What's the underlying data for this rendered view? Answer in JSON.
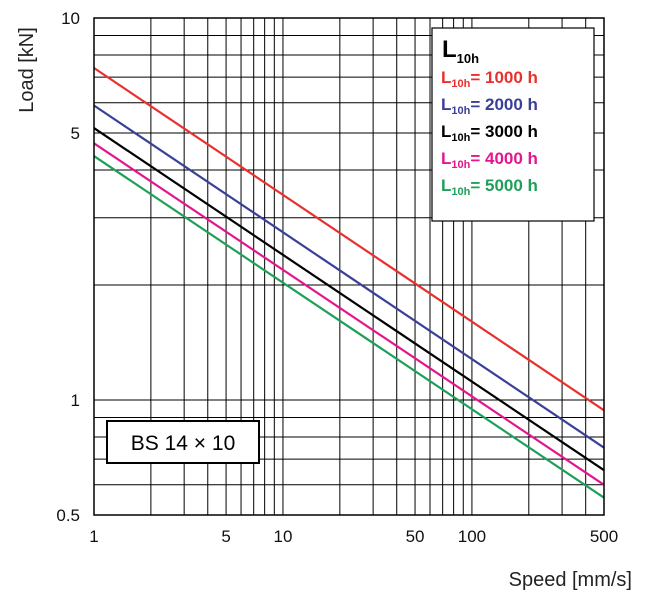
{
  "chart_data": {
    "type": "line",
    "xlabel": "Speed [mm/s]",
    "ylabel": "Load [kN]",
    "x_scale": "log",
    "y_scale": "log",
    "xlim": [
      1,
      500
    ],
    "ylim": [
      0.5,
      10
    ],
    "xticks": [
      1,
      5,
      10,
      50,
      100,
      500
    ],
    "xtick_labels": [
      "1",
      "5",
      "10",
      "50",
      "100",
      "500"
    ],
    "yticks": [
      0.5,
      1,
      5,
      10
    ],
    "ytick_labels": [
      "0.5",
      "1",
      "5",
      "10"
    ],
    "grid": true,
    "legend_position": "top-right",
    "legend_title": {
      "main": "L",
      "sub": "10h"
    },
    "annotation": "BS 14 × 10",
    "series": [
      {
        "name": "L10h= 1000 h",
        "label_main": "L",
        "label_sub": "10h",
        "label_rest": "= 1000 h",
        "color": "#e8312f",
        "x": [
          1,
          500
        ],
        "y": [
          7.4,
          0.94
        ]
      },
      {
        "name": "L10h= 2000 h",
        "label_main": "L",
        "label_sub": "10h",
        "label_rest": "= 2000 h",
        "color": "#3a3f98",
        "x": [
          1,
          500
        ],
        "y": [
          5.9,
          0.75
        ]
      },
      {
        "name": "L10h= 3000 h",
        "label_main": "L",
        "label_sub": "10h",
        "label_rest": "= 3000 h",
        "color": "#000000",
        "x": [
          1,
          500
        ],
        "y": [
          5.15,
          0.655
        ]
      },
      {
        "name": "L10h= 4000 h",
        "label_main": "L",
        "label_sub": "10h",
        "label_rest": "= 4000 h",
        "color": "#e3168f",
        "x": [
          1,
          500
        ],
        "y": [
          4.7,
          0.6
        ]
      },
      {
        "name": "L10h= 5000 h",
        "label_main": "L",
        "label_sub": "10h",
        "label_rest": "= 5000 h",
        "color": "#1ea05a",
        "x": [
          1,
          500
        ],
        "y": [
          4.35,
          0.555
        ]
      }
    ]
  }
}
